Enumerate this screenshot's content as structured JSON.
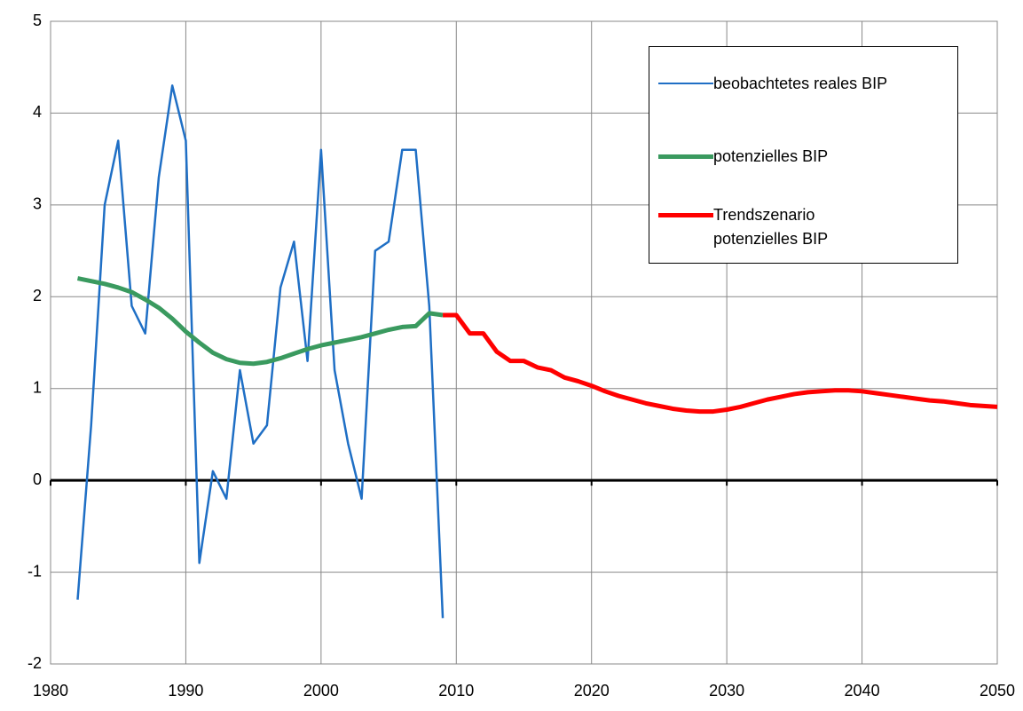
{
  "chart_data": {
    "type": "line",
    "xlim": [
      1980,
      2050
    ],
    "xticks": [
      1980,
      1990,
      2000,
      2010,
      2020,
      2030,
      2040,
      2050
    ],
    "ylim": [
      -2,
      5
    ],
    "yticks": [
      -2,
      -1,
      0,
      1,
      2,
      3,
      4,
      5
    ],
    "grid": true,
    "legend": "upper right",
    "series": [
      {
        "name": "beobachtetes reales BIP",
        "color": "#1f6fc5",
        "x": [
          1982,
          1983,
          1984,
          1985,
          1986,
          1987,
          1988,
          1989,
          1990,
          1991,
          1992,
          1993,
          1994,
          1995,
          1996,
          1997,
          1998,
          1999,
          2000,
          2001,
          2002,
          2003,
          2004,
          2005,
          2006,
          2007,
          2008,
          2009
        ],
        "values": [
          -1.3,
          0.6,
          3.0,
          3.7,
          1.9,
          1.6,
          3.3,
          4.3,
          3.7,
          -0.9,
          0.1,
          -0.2,
          1.2,
          0.4,
          0.6,
          2.1,
          2.6,
          1.3,
          3.6,
          1.2,
          0.4,
          -0.2,
          2.5,
          2.6,
          3.6,
          3.6,
          1.9,
          -1.5
        ]
      },
      {
        "name": "potenzielles BIP",
        "color": "#3a9a5f",
        "x": [
          1982,
          1983,
          1984,
          1985,
          1986,
          1987,
          1988,
          1989,
          1990,
          1991,
          1992,
          1993,
          1994,
          1995,
          1996,
          1997,
          1998,
          1999,
          2000,
          2001,
          2002,
          2003,
          2004,
          2005,
          2006,
          2007,
          2008,
          2009
        ],
        "values": [
          2.2,
          2.17,
          2.14,
          2.1,
          2.05,
          1.97,
          1.88,
          1.76,
          1.62,
          1.5,
          1.39,
          1.32,
          1.28,
          1.27,
          1.29,
          1.33,
          1.38,
          1.43,
          1.47,
          1.5,
          1.53,
          1.56,
          1.6,
          1.64,
          1.67,
          1.68,
          1.82,
          1.8
        ]
      },
      {
        "name": "Trendszenario potenzielles BIP",
        "color": "#ff0000",
        "x": [
          2009,
          2010,
          2011,
          2012,
          2013,
          2014,
          2015,
          2016,
          2017,
          2018,
          2019,
          2020,
          2021,
          2022,
          2023,
          2024,
          2025,
          2026,
          2027,
          2028,
          2029,
          2030,
          2031,
          2032,
          2033,
          2034,
          2035,
          2036,
          2037,
          2038,
          2039,
          2040,
          2041,
          2042,
          2043,
          2044,
          2045,
          2046,
          2047,
          2048,
          2049,
          2050
        ],
        "values": [
          1.8,
          1.8,
          1.6,
          1.6,
          1.4,
          1.3,
          1.3,
          1.23,
          1.2,
          1.12,
          1.08,
          1.03,
          0.97,
          0.92,
          0.88,
          0.84,
          0.81,
          0.78,
          0.76,
          0.75,
          0.75,
          0.77,
          0.8,
          0.84,
          0.88,
          0.91,
          0.94,
          0.96,
          0.97,
          0.98,
          0.98,
          0.97,
          0.95,
          0.93,
          0.91,
          0.89,
          0.87,
          0.86,
          0.84,
          0.82,
          0.81,
          0.8
        ]
      }
    ]
  }
}
